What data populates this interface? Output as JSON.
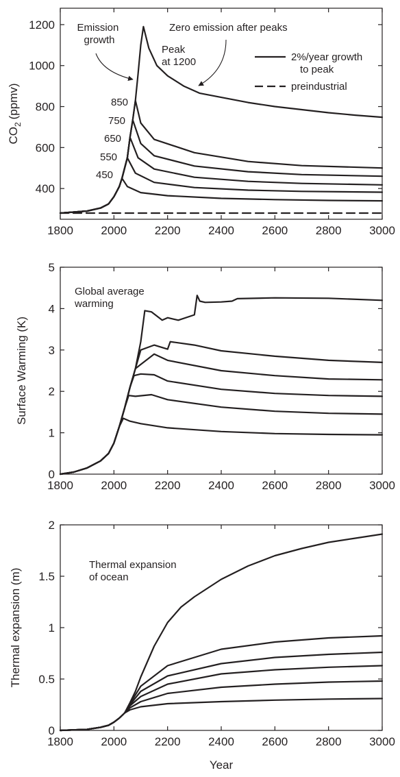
{
  "figure": {
    "xlabel": "Year"
  },
  "chart_data": [
    {
      "type": "line",
      "xlabel": "",
      "ylabel_main": "CO",
      "ylabel_sub": "2",
      "ylabel_unit": "(ppmv)",
      "xlim": [
        1800,
        3000
      ],
      "ylim": [
        250,
        1280
      ],
      "xticks": [
        1800,
        2000,
        2200,
        2400,
        2600,
        2800,
        3000
      ],
      "yticks": [
        400,
        600,
        800,
        1000,
        1200
      ],
      "legend": {
        "position": "top-right",
        "entries": [
          {
            "label_line1": "2%/year growth",
            "label_line2": "to peak",
            "style": "solid"
          },
          {
            "label_line1": "preindustrial",
            "label_line2": "",
            "style": "dashed"
          }
        ]
      },
      "annotations": {
        "emission_line1": "Emission",
        "emission_line2": "growth",
        "zero": "Zero emission after peaks",
        "peak_line1": "Peak",
        "peak_line2": "at 1200"
      },
      "peak_labels": [
        "850",
        "750",
        "650",
        "550",
        "450"
      ],
      "series": [
        {
          "x": [
            1800,
            1900,
            1950,
            1980,
            2000,
            2010,
            2020,
            2030,
            2050,
            2100,
            2200,
            2400,
            2600,
            2800,
            3000
          ],
          "y": [
            280,
            290,
            305,
            325,
            360,
            385,
            410,
            450,
            410,
            380,
            365,
            352,
            346,
            342,
            340
          ]
        },
        {
          "x": [
            1800,
            1900,
            1950,
            1980,
            2000,
            2010,
            2020,
            2030,
            2040,
            2050,
            2080,
            2150,
            2300,
            2500,
            2700,
            3000
          ],
          "y": [
            280,
            290,
            305,
            325,
            360,
            385,
            410,
            450,
            500,
            550,
            475,
            430,
            405,
            392,
            386,
            382
          ]
        },
        {
          "x": [
            1800,
            1900,
            1950,
            1980,
            2000,
            2010,
            2020,
            2030,
            2040,
            2050,
            2060,
            2090,
            2150,
            2300,
            2500,
            2700,
            3000
          ],
          "y": [
            280,
            290,
            305,
            325,
            360,
            385,
            410,
            450,
            500,
            550,
            650,
            550,
            495,
            455,
            435,
            425,
            418
          ]
        },
        {
          "x": [
            1800,
            1900,
            1950,
            1980,
            2000,
            2010,
            2020,
            2030,
            2040,
            2050,
            2060,
            2070,
            2100,
            2150,
            2300,
            2500,
            2700,
            3000
          ],
          "y": [
            280,
            290,
            305,
            325,
            360,
            385,
            410,
            450,
            500,
            550,
            650,
            735,
            620,
            560,
            510,
            482,
            468,
            460
          ]
        },
        {
          "x": [
            1800,
            1900,
            1950,
            1980,
            2000,
            2010,
            2020,
            2030,
            2040,
            2050,
            2060,
            2070,
            2080,
            2100,
            2150,
            2300,
            2500,
            2700,
            3000
          ],
          "y": [
            280,
            290,
            305,
            325,
            360,
            385,
            410,
            450,
            500,
            550,
            650,
            735,
            830,
            720,
            640,
            575,
            532,
            512,
            500
          ]
        },
        {
          "x": [
            1800,
            1900,
            1950,
            1980,
            2000,
            2010,
            2020,
            2030,
            2040,
            2050,
            2060,
            2070,
            2080,
            2090,
            2100,
            2110,
            2130,
            2160,
            2200,
            2260,
            2320,
            2400,
            2500,
            2600,
            2700,
            2800,
            2900,
            3000
          ],
          "y": [
            280,
            290,
            305,
            325,
            360,
            385,
            410,
            450,
            500,
            550,
            650,
            735,
            830,
            960,
            1100,
            1190,
            1085,
            1000,
            950,
            900,
            865,
            845,
            820,
            800,
            785,
            770,
            758,
            748
          ]
        },
        {
          "x": [
            1800,
            3000
          ],
          "y": [
            280,
            280
          ],
          "dashed": true
        }
      ]
    },
    {
      "type": "line",
      "xlabel": "",
      "ylabel": "Surface Warming (K)",
      "xlim": [
        1800,
        3000
      ],
      "ylim": [
        0,
        5
      ],
      "xticks": [
        1800,
        2000,
        2200,
        2400,
        2600,
        2800,
        3000
      ],
      "yticks": [
        0,
        1,
        2,
        3,
        4,
        5
      ],
      "annotation_line1": "Global average",
      "annotation_line2": "warming",
      "series": [
        {
          "x": [
            1800,
            1850,
            1900,
            1950,
            1980,
            2000,
            2020,
            2035,
            2060,
            2100,
            2200,
            2400,
            2600,
            2800,
            3000
          ],
          "y": [
            0,
            0.05,
            0.15,
            0.32,
            0.5,
            0.75,
            1.15,
            1.35,
            1.28,
            1.22,
            1.12,
            1.03,
            0.98,
            0.96,
            0.95
          ]
        },
        {
          "x": [
            1800,
            1850,
            1900,
            1950,
            1980,
            2000,
            2020,
            2040,
            2055,
            2080,
            2140,
            2200,
            2400,
            2600,
            2800,
            3000
          ],
          "y": [
            0,
            0.05,
            0.15,
            0.32,
            0.5,
            0.75,
            1.15,
            1.6,
            1.9,
            1.88,
            1.92,
            1.8,
            1.62,
            1.52,
            1.47,
            1.45
          ]
        },
        {
          "x": [
            1800,
            1850,
            1900,
            1950,
            1980,
            2000,
            2020,
            2040,
            2060,
            2075,
            2100,
            2150,
            2200,
            2400,
            2600,
            2800,
            3000
          ],
          "y": [
            0,
            0.05,
            0.15,
            0.32,
            0.5,
            0.75,
            1.15,
            1.6,
            2.1,
            2.38,
            2.42,
            2.4,
            2.25,
            2.05,
            1.95,
            1.9,
            1.88
          ]
        },
        {
          "x": [
            1800,
            1850,
            1900,
            1950,
            1980,
            2000,
            2020,
            2040,
            2060,
            2080,
            2100,
            2150,
            2200,
            2400,
            2600,
            2800,
            3000
          ],
          "y": [
            0,
            0.05,
            0.15,
            0.32,
            0.5,
            0.75,
            1.15,
            1.6,
            2.1,
            2.55,
            2.65,
            2.9,
            2.75,
            2.5,
            2.38,
            2.3,
            2.28
          ]
        },
        {
          "x": [
            1800,
            1850,
            1900,
            1950,
            1980,
            2000,
            2020,
            2040,
            2060,
            2080,
            2100,
            2150,
            2200,
            2210,
            2300,
            2400,
            2600,
            2800,
            3000
          ],
          "y": [
            0,
            0.05,
            0.15,
            0.32,
            0.5,
            0.75,
            1.15,
            1.6,
            2.1,
            2.55,
            3.0,
            3.12,
            3.02,
            3.2,
            3.12,
            2.98,
            2.85,
            2.75,
            2.7
          ]
        },
        {
          "x": [
            1800,
            1850,
            1900,
            1950,
            1980,
            2000,
            2020,
            2040,
            2060,
            2080,
            2100,
            2115,
            2140,
            2160,
            2180,
            2200,
            2240,
            2300,
            2310,
            2320,
            2340,
            2400,
            2440,
            2460,
            2600,
            2800,
            3000
          ],
          "y": [
            0,
            0.05,
            0.15,
            0.32,
            0.5,
            0.75,
            1.15,
            1.6,
            2.1,
            2.55,
            3.2,
            3.95,
            3.92,
            3.82,
            3.72,
            3.78,
            3.72,
            3.85,
            4.32,
            4.18,
            4.15,
            4.16,
            4.18,
            4.24,
            4.26,
            4.25,
            4.2
          ]
        }
      ]
    },
    {
      "type": "line",
      "xlabel": "Year",
      "ylabel": "Thermal expansion (m)",
      "xlim": [
        1800,
        3000
      ],
      "ylim": [
        0,
        2
      ],
      "xticks": [
        1800,
        2000,
        2200,
        2400,
        2600,
        2800,
        3000
      ],
      "yticks": [
        0,
        0.5,
        1,
        1.5,
        2
      ],
      "annotation_line1": "Thermal expansion",
      "annotation_line2": "of ocean",
      "series": [
        {
          "x": [
            1800,
            1900,
            1950,
            1980,
            2000,
            2020,
            2040,
            2060,
            2100,
            2200,
            2400,
            2600,
            2800,
            3000
          ],
          "y": [
            0,
            0.01,
            0.03,
            0.05,
            0.08,
            0.12,
            0.17,
            0.2,
            0.23,
            0.26,
            0.28,
            0.295,
            0.305,
            0.31
          ]
        },
        {
          "x": [
            1800,
            1900,
            1950,
            1980,
            2000,
            2020,
            2040,
            2060,
            2100,
            2200,
            2400,
            2600,
            2800,
            3000
          ],
          "y": [
            0,
            0.01,
            0.03,
            0.05,
            0.08,
            0.12,
            0.17,
            0.22,
            0.28,
            0.36,
            0.42,
            0.45,
            0.47,
            0.48
          ]
        },
        {
          "x": [
            1800,
            1900,
            1950,
            1980,
            2000,
            2020,
            2040,
            2060,
            2100,
            2200,
            2400,
            2600,
            2800,
            3000
          ],
          "y": [
            0,
            0.01,
            0.03,
            0.05,
            0.08,
            0.12,
            0.17,
            0.24,
            0.33,
            0.45,
            0.55,
            0.59,
            0.615,
            0.63
          ]
        },
        {
          "x": [
            1800,
            1900,
            1950,
            1980,
            2000,
            2020,
            2040,
            2060,
            2100,
            2200,
            2400,
            2600,
            2800,
            3000
          ],
          "y": [
            0,
            0.01,
            0.03,
            0.05,
            0.08,
            0.12,
            0.17,
            0.25,
            0.38,
            0.53,
            0.65,
            0.71,
            0.74,
            0.76
          ]
        },
        {
          "x": [
            1800,
            1900,
            1950,
            1980,
            2000,
            2020,
            2040,
            2060,
            2100,
            2200,
            2400,
            2600,
            2800,
            3000
          ],
          "y": [
            0,
            0.01,
            0.03,
            0.05,
            0.08,
            0.12,
            0.17,
            0.26,
            0.43,
            0.63,
            0.79,
            0.86,
            0.9,
            0.92
          ]
        },
        {
          "x": [
            1800,
            1900,
            1950,
            1980,
            2000,
            2020,
            2040,
            2060,
            2080,
            2100,
            2150,
            2200,
            2250,
            2300,
            2400,
            2500,
            2600,
            2700,
            2800,
            2900,
            3000
          ],
          "y": [
            0,
            0.01,
            0.03,
            0.05,
            0.08,
            0.12,
            0.17,
            0.27,
            0.38,
            0.52,
            0.82,
            1.05,
            1.2,
            1.3,
            1.47,
            1.6,
            1.7,
            1.77,
            1.83,
            1.87,
            1.91
          ]
        }
      ]
    }
  ]
}
